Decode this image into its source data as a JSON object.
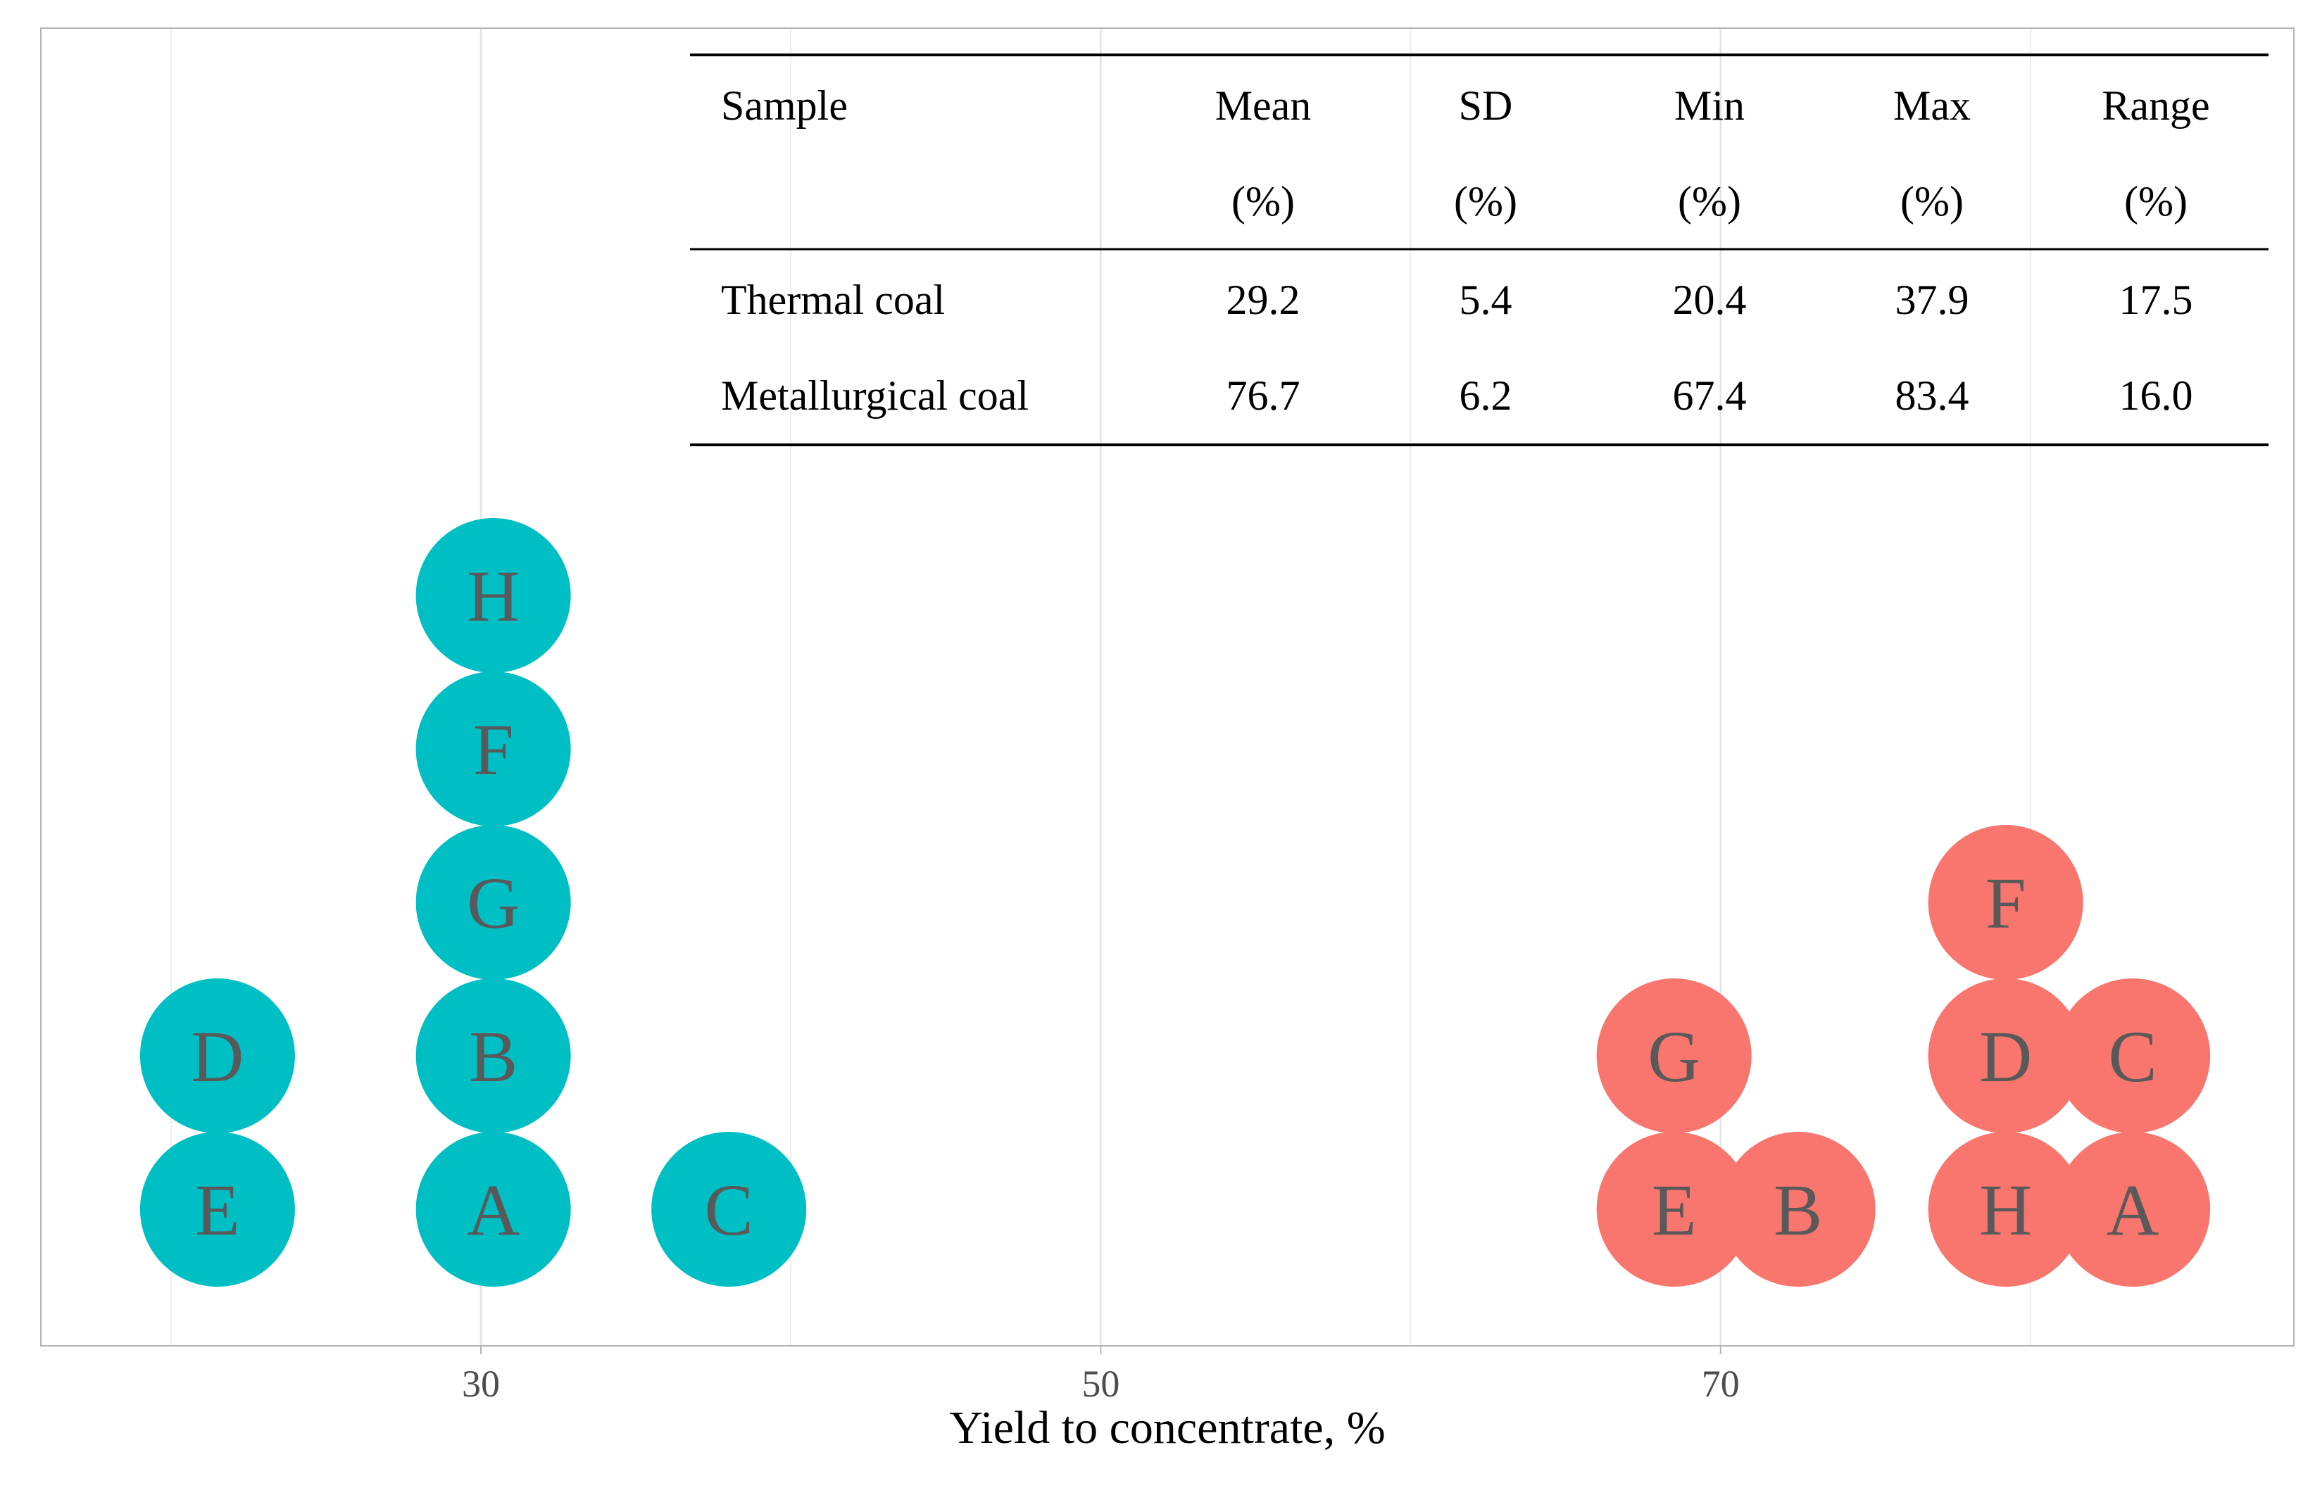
{
  "chart_data": {
    "type": "scatter",
    "subtype": "dot-plot",
    "xlabel": "Yield to concentrate, %",
    "x_ticks": [
      30,
      50,
      70
    ],
    "xlim": [
      15.8,
      88.5
    ],
    "grid": true,
    "legend": "none",
    "colors": {
      "thermal": "#00BFC4",
      "metallurgical": "#F8766D",
      "label": "#595959"
    },
    "series": [
      {
        "name": "Thermal coal",
        "color": "#00BFC4",
        "points": [
          {
            "label": "E",
            "x": 21.5,
            "stack": 0
          },
          {
            "label": "D",
            "x": 21.5,
            "stack": 1
          },
          {
            "label": "A",
            "x": 30.4,
            "stack": 0
          },
          {
            "label": "B",
            "x": 30.4,
            "stack": 1
          },
          {
            "label": "G",
            "x": 30.4,
            "stack": 2
          },
          {
            "label": "F",
            "x": 30.4,
            "stack": 3
          },
          {
            "label": "H",
            "x": 30.4,
            "stack": 4
          },
          {
            "label": "C",
            "x": 38.0,
            "stack": 0
          }
        ]
      },
      {
        "name": "Metallurgical coal",
        "color": "#F8766D",
        "points": [
          {
            "label": "E",
            "x": 68.5,
            "stack": 0
          },
          {
            "label": "G",
            "x": 68.5,
            "stack": 1
          },
          {
            "label": "B",
            "x": 72.5,
            "stack": 0
          },
          {
            "label": "H",
            "x": 79.2,
            "stack": 0
          },
          {
            "label": "D",
            "x": 79.2,
            "stack": 1
          },
          {
            "label": "F",
            "x": 79.2,
            "stack": 2
          },
          {
            "label": "A",
            "x": 83.3,
            "stack": 0
          },
          {
            "label": "C",
            "x": 83.3,
            "stack": 1
          }
        ]
      }
    ],
    "table": {
      "headers": [
        {
          "line1": "Sample",
          "line2": ""
        },
        {
          "line1": "Mean",
          "line2": "(%)"
        },
        {
          "line1": "SD",
          "line2": "(%)"
        },
        {
          "line1": "Min",
          "line2": "(%)"
        },
        {
          "line1": "Max",
          "line2": "(%)"
        },
        {
          "line1": "Range",
          "line2": "(%)"
        }
      ],
      "rows": [
        [
          "Thermal coal",
          "29.2",
          "5.4",
          "20.4",
          "37.9",
          "17.5"
        ],
        [
          "Metallurgical coal",
          "76.7",
          "6.2",
          "67.4",
          "83.4",
          "16.0"
        ]
      ]
    }
  }
}
